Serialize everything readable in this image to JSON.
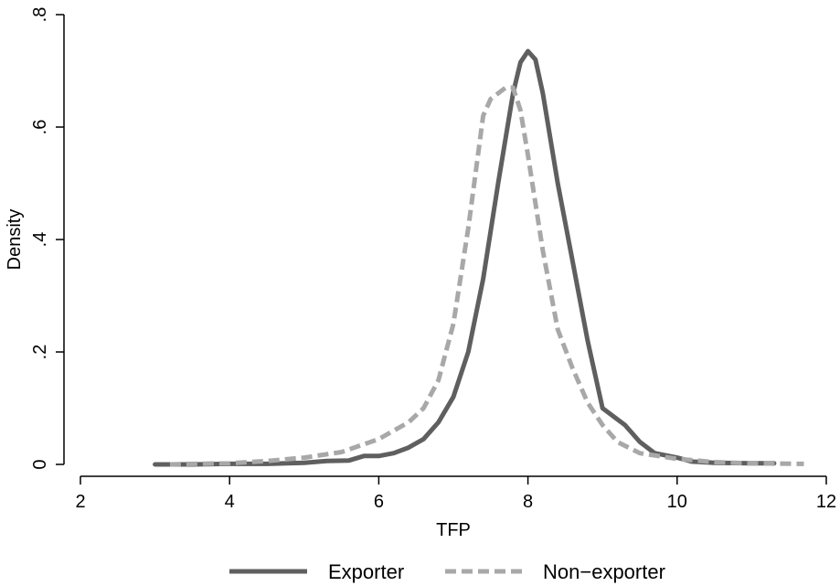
{
  "chart_data": {
    "type": "line",
    "xlabel": "TFP",
    "ylabel": "Density",
    "xlim": [
      2,
      12
    ],
    "ylim": [
      0,
      0.8
    ],
    "x_ticks": [
      2,
      4,
      6,
      8,
      10,
      12
    ],
    "x_tick_labels": [
      "2",
      "4",
      "6",
      "8",
      "10",
      "12"
    ],
    "y_ticks": [
      0,
      0.2,
      0.4,
      0.6,
      0.8
    ],
    "y_tick_labels": [
      "0",
      ".2",
      ".4",
      ".6",
      ".8"
    ],
    "grid": false,
    "legend_position": "bottom",
    "series": [
      {
        "name": "Exporter",
        "color": "#5f5f5f",
        "style": "solid",
        "points": [
          [
            3.0,
            0.0
          ],
          [
            3.5,
            0.0
          ],
          [
            4.0,
            0.001
          ],
          [
            4.5,
            0.001
          ],
          [
            5.0,
            0.003
          ],
          [
            5.3,
            0.006
          ],
          [
            5.6,
            0.007
          ],
          [
            5.8,
            0.015
          ],
          [
            6.0,
            0.015
          ],
          [
            6.2,
            0.02
          ],
          [
            6.4,
            0.03
          ],
          [
            6.6,
            0.045
          ],
          [
            6.8,
            0.075
          ],
          [
            7.0,
            0.12
          ],
          [
            7.2,
            0.2
          ],
          [
            7.4,
            0.33
          ],
          [
            7.6,
            0.5
          ],
          [
            7.8,
            0.66
          ],
          [
            7.9,
            0.715
          ],
          [
            8.0,
            0.735
          ],
          [
            8.1,
            0.72
          ],
          [
            8.2,
            0.66
          ],
          [
            8.4,
            0.5
          ],
          [
            8.6,
            0.36
          ],
          [
            8.8,
            0.22
          ],
          [
            9.0,
            0.1
          ],
          [
            9.2,
            0.08
          ],
          [
            9.3,
            0.07
          ],
          [
            9.5,
            0.04
          ],
          [
            9.7,
            0.02
          ],
          [
            10.0,
            0.012
          ],
          [
            10.2,
            0.005
          ],
          [
            10.5,
            0.003
          ],
          [
            11.0,
            0.002
          ],
          [
            11.3,
            0.002
          ]
        ]
      },
      {
        "name": "Non−exporter",
        "color": "#a8a8a8",
        "style": "dashed",
        "points": [
          [
            3.2,
            0.0
          ],
          [
            3.5,
            0.001
          ],
          [
            4.0,
            0.002
          ],
          [
            4.5,
            0.006
          ],
          [
            5.0,
            0.012
          ],
          [
            5.5,
            0.022
          ],
          [
            6.0,
            0.045
          ],
          [
            6.4,
            0.075
          ],
          [
            6.6,
            0.1
          ],
          [
            6.8,
            0.15
          ],
          [
            7.0,
            0.25
          ],
          [
            7.2,
            0.42
          ],
          [
            7.4,
            0.62
          ],
          [
            7.5,
            0.65
          ],
          [
            7.7,
            0.67
          ],
          [
            7.8,
            0.67
          ],
          [
            7.9,
            0.63
          ],
          [
            8.0,
            0.55
          ],
          [
            8.2,
            0.38
          ],
          [
            8.4,
            0.24
          ],
          [
            8.6,
            0.17
          ],
          [
            8.8,
            0.11
          ],
          [
            9.0,
            0.07
          ],
          [
            9.2,
            0.04
          ],
          [
            9.5,
            0.02
          ],
          [
            10.0,
            0.01
          ],
          [
            10.5,
            0.004
          ],
          [
            11.0,
            0.002
          ],
          [
            11.7,
            0.001
          ]
        ]
      }
    ]
  }
}
